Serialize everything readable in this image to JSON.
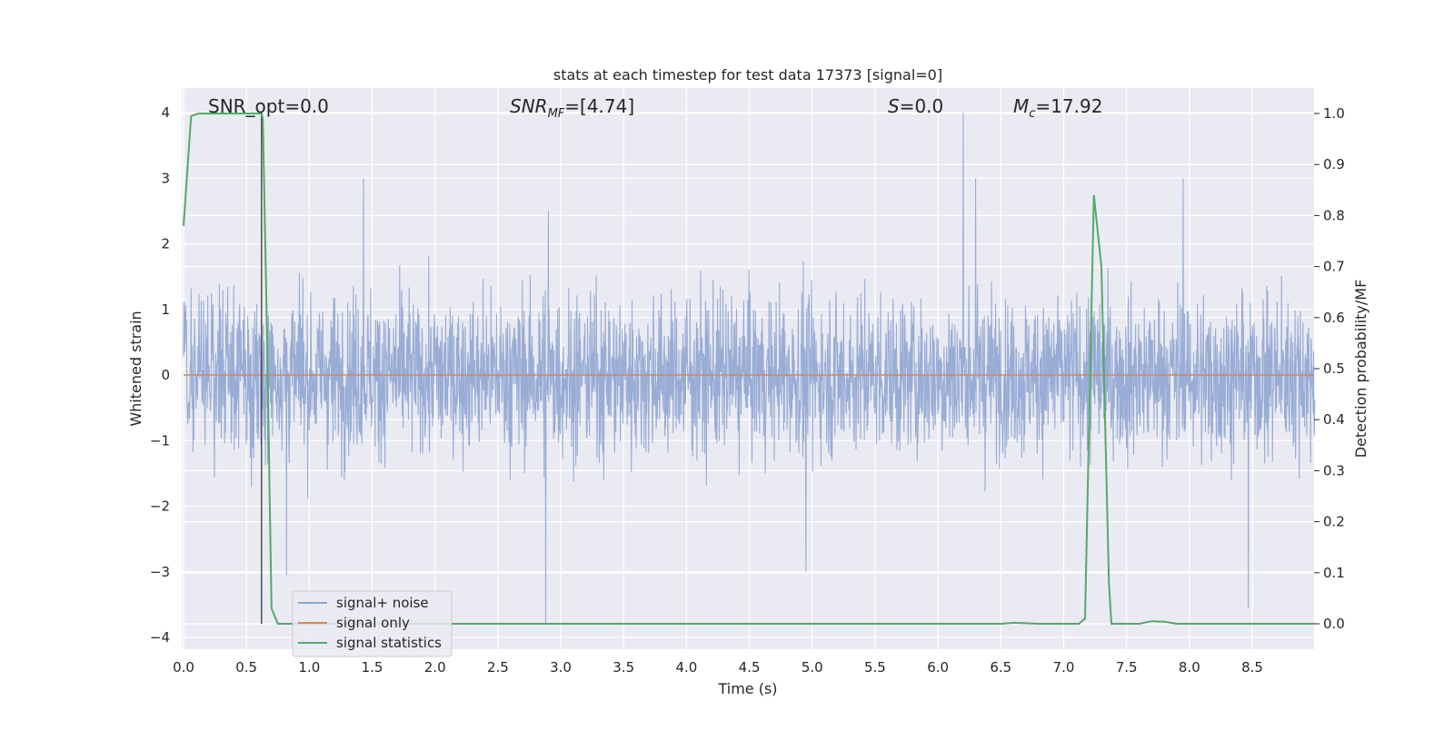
{
  "chart_data": {
    "type": "line",
    "title": "stats at each timestep for test data 17373 [signal=0]",
    "xlabel": "Time (s)",
    "ylabel_left": "Whitened strain",
    "ylabel_right": "Detection probability/MF",
    "xlim": [
      0.0,
      9.0
    ],
    "ylim_left": [
      -4.3,
      4.4
    ],
    "ylim_right": [
      -0.05,
      1.05
    ],
    "xticks": [
      "0.0",
      "0.5",
      "1.0",
      "1.5",
      "2.0",
      "2.5",
      "3.0",
      "3.5",
      "4.0",
      "4.5",
      "5.0",
      "5.5",
      "6.0",
      "6.5",
      "7.0",
      "7.5",
      "8.0",
      "8.5"
    ],
    "yticks_left": [
      "4",
      "3",
      "2",
      "1",
      "0",
      "−1",
      "−2",
      "−3",
      "−4"
    ],
    "yticks_right": [
      "1.0",
      "0.9",
      "0.8",
      "0.7",
      "0.6",
      "0.5",
      "0.4",
      "0.3",
      "0.2",
      "0.1",
      "0.0"
    ],
    "grid": true,
    "legend_position": "lower-left",
    "annotations": {
      "snr_opt": "SNR_opt=0.0",
      "snr_mf_base": "SNR",
      "snr_mf_sub": "MF",
      "snr_mf_value": "=[4.74]",
      "s_label": "S",
      "s_value": "=0.0",
      "mc_base": "M",
      "mc_sub": "c",
      "mc_value": "=17.92"
    },
    "series": [
      {
        "name": "signal+ noise",
        "axis": "left",
        "color": "#8fa5d1",
        "description_values": "whitened strain noise, roughly within ±2.3 with spikes",
        "spikes": [
          [
            6.2,
            4.0
          ],
          [
            2.88,
            -3.8
          ],
          [
            0.82,
            -3.05
          ],
          [
            8.47,
            -3.55
          ],
          [
            4.95,
            -3.0
          ],
          [
            6.3,
            3.0
          ],
          [
            1.43,
            3.0
          ],
          [
            7.95,
            3.0
          ],
          [
            2.9,
            2.5
          ]
        ]
      },
      {
        "name": "signal only",
        "axis": "left",
        "color": "#dd8452",
        "x": [
          0.0,
          9.0
        ],
        "values": [
          0.0,
          0.0
        ]
      },
      {
        "name": "signal statistics",
        "axis": "right",
        "color": "#55a868",
        "x": [
          0.0,
          0.06,
          0.12,
          0.3,
          0.5,
          0.62,
          0.63,
          0.66,
          0.7,
          0.75,
          1.0,
          3.0,
          5.0,
          6.5,
          6.6,
          6.7,
          6.8,
          7.0,
          7.12,
          7.17,
          7.24,
          7.3,
          7.36,
          7.38,
          7.45,
          7.6,
          7.7,
          7.8,
          7.9,
          8.5,
          9.0
        ],
        "values": [
          0.78,
          0.995,
          1.0,
          1.0,
          1.0,
          1.0,
          0.99,
          0.62,
          0.03,
          0.0,
          0.0,
          0.0,
          0.0,
          0.0,
          0.002,
          0.001,
          0.0,
          0.0,
          0.0,
          0.01,
          0.84,
          0.7,
          0.08,
          0.0,
          0.0,
          0.0,
          0.005,
          0.004,
          0.0,
          0.0,
          0.0
        ]
      }
    ],
    "vertical_marker_x": 0.62
  }
}
